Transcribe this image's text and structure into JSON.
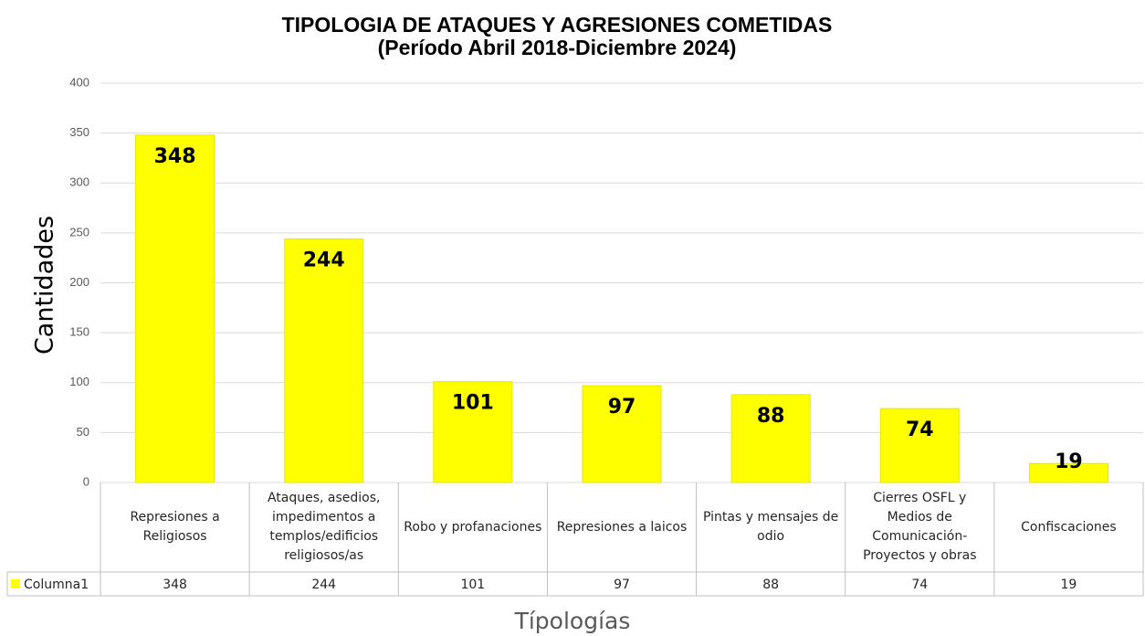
{
  "chart_data": {
    "type": "bar",
    "title": "TIPOLOGIA DE ATAQUES Y AGRESIONES COMETIDAS",
    "subtitle": "(Período Abril 2018-Diciembre 2024)",
    "y_label": "Cantidades",
    "x_label": "Típologías",
    "categories": [
      "Represiones a Religiosos",
      "Ataques, asedios, impedimentos a templos/edificios religiosos/as",
      "Robo y profanaciones",
      "Represiones a laicos",
      "Pintas y mensajes de odio",
      "Cierres OSFL y Medios de Comunicación-Proyectos y obras",
      "Confiscaciones"
    ],
    "series": [
      {
        "name": "Columna1",
        "color": "#ffff00",
        "values": [
          348,
          244,
          101,
          97,
          88,
          74,
          19
        ]
      }
    ],
    "ylim": [
      0,
      400
    ],
    "yticks": [
      0,
      50,
      100,
      150,
      200,
      250,
      300,
      350,
      400
    ],
    "grid": true
  }
}
